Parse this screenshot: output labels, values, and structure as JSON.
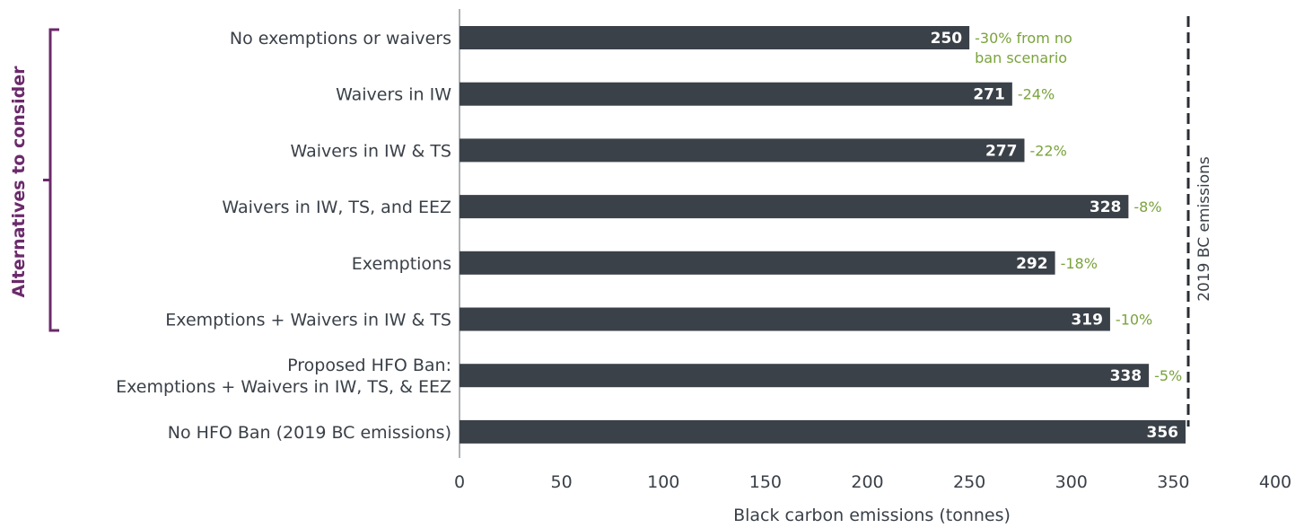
{
  "chart_data": {
    "type": "bar",
    "orientation": "horizontal",
    "categories": [
      [
        "No exemptions or waivers"
      ],
      [
        "Waivers in IW"
      ],
      [
        "Waivers in IW & TS"
      ],
      [
        "Waivers in IW, TS, and EEZ"
      ],
      [
        "Exemptions"
      ],
      [
        "Exemptions + Waivers in IW & TS"
      ],
      [
        "Proposed HFO Ban:",
        "Exemptions + Waivers in IW, TS, & EEZ"
      ],
      [
        "No HFO Ban (2019 BC emissions)"
      ]
    ],
    "values": [
      250,
      271,
      277,
      328,
      292,
      319,
      338,
      356
    ],
    "value_labels": [
      "250",
      "271",
      "277",
      "328",
      "292",
      "319",
      "338",
      "356"
    ],
    "annotations": [
      [
        "-30% from no",
        "ban scenario"
      ],
      [
        "-24%"
      ],
      [
        "-22%"
      ],
      [
        "-8%"
      ],
      [
        "-18%"
      ],
      [
        "-10%"
      ],
      [
        "-5%"
      ],
      []
    ],
    "xlabel": "Black carbon emissions (tonnes)",
    "xlim": [
      0,
      400
    ],
    "xticks": [
      0,
      50,
      100,
      150,
      200,
      250,
      300,
      350,
      400
    ],
    "reference_line": {
      "value": 356,
      "label": "2019 BC emissions",
      "style": "dashed"
    },
    "group_bracket": {
      "label": "Alternatives to consider",
      "from_index": 0,
      "to_index": 5
    },
    "grid": false,
    "colors": {
      "bar": "#3b4149",
      "annotation": "#7aa33c",
      "bracket": "#6b2a6b",
      "text": "#3a4048",
      "axis": "#7a7f86"
    }
  }
}
